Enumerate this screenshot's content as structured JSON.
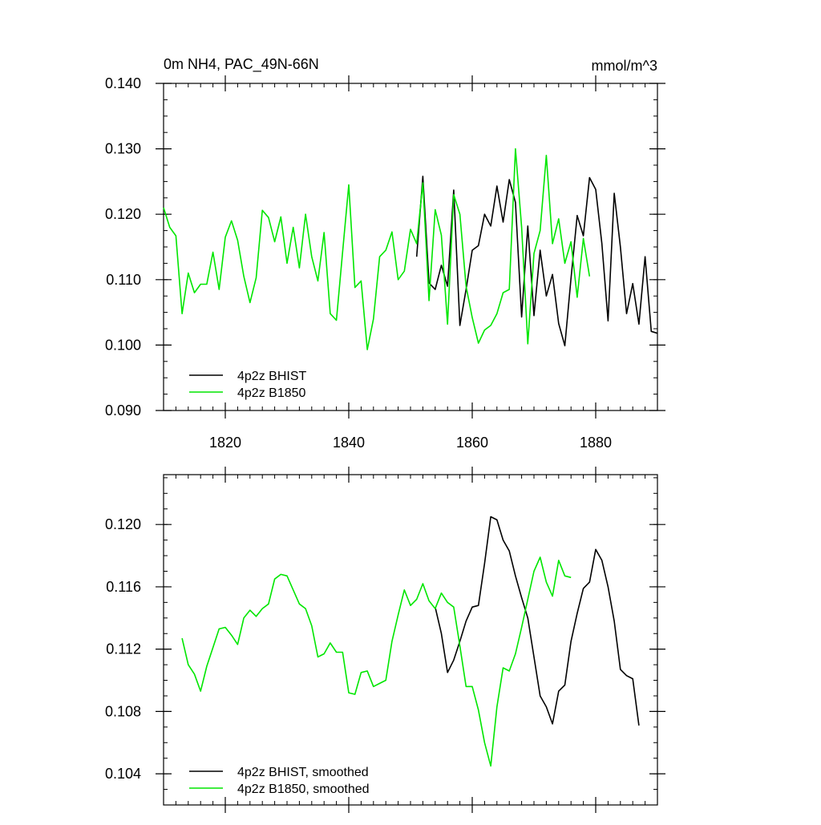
{
  "chart_data": [
    {
      "type": "line",
      "title": "0m NH4, PAC_49N-66N",
      "units": "mmol/m^3",
      "xlim": [
        1810,
        1890
      ],
      "ylim": [
        0.09,
        0.14
      ],
      "x_ticks": [
        1820,
        1840,
        1860,
        1880
      ],
      "x_tick_labels": [
        "1820",
        "1840",
        "1860",
        "1880"
      ],
      "y_ticks": [
        0.09,
        0.1,
        0.11,
        0.12,
        0.13,
        0.14
      ],
      "y_tick_labels": [
        "0.090",
        "0.100",
        "0.110",
        "0.120",
        "0.130",
        "0.140"
      ],
      "legend_position": "bottom-left",
      "series": [
        {
          "name": "4p2z BHIST",
          "color": "#000000",
          "x": [
            1851,
            1852,
            1853,
            1854,
            1855,
            1856,
            1857,
            1858,
            1859,
            1860,
            1861,
            1862,
            1863,
            1864,
            1865,
            1866,
            1867,
            1868,
            1869,
            1870,
            1871,
            1872,
            1873,
            1874,
            1875,
            1876,
            1877,
            1878,
            1879,
            1880,
            1881,
            1882,
            1883,
            1884,
            1885,
            1886,
            1887,
            1888,
            1889,
            1890
          ],
          "y": [
            0.1135,
            0.1258,
            0.1095,
            0.1085,
            0.1122,
            0.109,
            0.1237,
            0.103,
            0.1085,
            0.1145,
            0.1152,
            0.12,
            0.1182,
            0.1243,
            0.1188,
            0.1253,
            0.1218,
            0.1043,
            0.1182,
            0.1045,
            0.1145,
            0.1075,
            0.1108,
            0.1033,
            0.0999,
            0.1102,
            0.1198,
            0.1167,
            0.1256,
            0.1238,
            0.1155,
            0.1037,
            0.1232,
            0.115,
            0.1048,
            0.1094,
            0.1032,
            0.1135,
            0.1021,
            0.1018
          ]
        },
        {
          "name": "4p2z B1850",
          "color": "#00e600",
          "x": [
            1810,
            1811,
            1812,
            1813,
            1814,
            1815,
            1816,
            1817,
            1818,
            1819,
            1820,
            1821,
            1822,
            1823,
            1824,
            1825,
            1826,
            1827,
            1828,
            1829,
            1830,
            1831,
            1832,
            1833,
            1834,
            1835,
            1836,
            1837,
            1838,
            1839,
            1840,
            1841,
            1842,
            1843,
            1844,
            1845,
            1846,
            1847,
            1848,
            1849,
            1850,
            1851,
            1852,
            1853,
            1854,
            1855,
            1856,
            1857,
            1858,
            1859,
            1860,
            1861,
            1862,
            1863,
            1864,
            1865,
            1866,
            1867,
            1868,
            1869,
            1870,
            1871,
            1872,
            1873,
            1874,
            1875,
            1876,
            1877,
            1878,
            1879
          ],
          "y": [
            0.121,
            0.118,
            0.1167,
            0.1048,
            0.111,
            0.108,
            0.1093,
            0.1093,
            0.1142,
            0.1085,
            0.1165,
            0.119,
            0.116,
            0.1105,
            0.1065,
            0.1103,
            0.1206,
            0.1195,
            0.1158,
            0.1196,
            0.1125,
            0.118,
            0.1118,
            0.12,
            0.1135,
            0.1098,
            0.1172,
            0.1048,
            0.1038,
            0.1142,
            0.1245,
            0.1088,
            0.1098,
            0.0993,
            0.104,
            0.1135,
            0.1145,
            0.1173,
            0.11,
            0.1113,
            0.1177,
            0.1155,
            0.1248,
            0.1068,
            0.1207,
            0.1168,
            0.1032,
            0.123,
            0.12,
            0.109,
            0.1042,
            0.1003,
            0.1023,
            0.103,
            0.1048,
            0.108,
            0.1085,
            0.13,
            0.118,
            0.1002,
            0.114,
            0.1175,
            0.129,
            0.1155,
            0.1193,
            0.1125,
            0.1158,
            0.1073,
            0.1163,
            0.1105
          ]
        }
      ]
    },
    {
      "type": "line",
      "xlim": [
        1810,
        1890
      ],
      "ylim": [
        0.102,
        0.1232
      ],
      "x_ticks": [
        1820,
        1840,
        1860,
        1880
      ],
      "y_ticks": [
        0.104,
        0.108,
        0.112,
        0.116,
        0.12
      ],
      "y_tick_labels": [
        "0.104",
        "0.108",
        "0.112",
        "0.116",
        "0.120"
      ],
      "legend_position": "bottom-left",
      "series": [
        {
          "name": "4p2z BHIST, smoothed",
          "color": "#000000",
          "x": [
            1854,
            1855,
            1856,
            1857,
            1858,
            1859,
            1860,
            1861,
            1862,
            1863,
            1864,
            1865,
            1866,
            1867,
            1868,
            1869,
            1870,
            1871,
            1872,
            1873,
            1874,
            1875,
            1876,
            1877,
            1878,
            1879,
            1880,
            1881,
            1882,
            1883,
            1884,
            1885,
            1886,
            1887
          ],
          "y": [
            0.1147,
            0.113,
            0.1105,
            0.1113,
            0.1125,
            0.1138,
            0.1147,
            0.1148,
            0.1175,
            0.1205,
            0.1203,
            0.119,
            0.1183,
            0.1167,
            0.1153,
            0.114,
            0.1115,
            0.109,
            0.1083,
            0.1072,
            0.1093,
            0.1097,
            0.1125,
            0.1143,
            0.1159,
            0.1163,
            0.1184,
            0.1177,
            0.116,
            0.1138,
            0.1107,
            0.1103,
            0.1101,
            0.1071
          ]
        },
        {
          "name": "4p2z B1850, smoothed",
          "color": "#00e600",
          "x": [
            1813,
            1814,
            1815,
            1816,
            1817,
            1818,
            1819,
            1820,
            1821,
            1822,
            1823,
            1824,
            1825,
            1826,
            1827,
            1828,
            1829,
            1830,
            1831,
            1832,
            1833,
            1834,
            1835,
            1836,
            1837,
            1838,
            1839,
            1840,
            1841,
            1842,
            1843,
            1844,
            1845,
            1846,
            1847,
            1848,
            1849,
            1850,
            1851,
            1852,
            1853,
            1854,
            1855,
            1856,
            1857,
            1858,
            1859,
            1860,
            1861,
            1862,
            1863,
            1864,
            1865,
            1866,
            1867,
            1868,
            1869,
            1870,
            1871,
            1872,
            1873,
            1874,
            1875,
            1876
          ],
          "y": [
            0.1127,
            0.111,
            0.1104,
            0.1093,
            0.1109,
            0.1121,
            0.1133,
            0.1134,
            0.1129,
            0.1123,
            0.114,
            0.1145,
            0.1141,
            0.1146,
            0.1149,
            0.1165,
            0.1168,
            0.1167,
            0.1158,
            0.1149,
            0.1146,
            0.1135,
            0.1115,
            0.1117,
            0.1124,
            0.1118,
            0.1118,
            0.1092,
            0.1091,
            0.1105,
            0.1106,
            0.1096,
            0.1098,
            0.11,
            0.1125,
            0.1142,
            0.1158,
            0.1148,
            0.1152,
            0.1162,
            0.1151,
            0.1146,
            0.1156,
            0.115,
            0.1147,
            0.1122,
            0.1096,
            0.1096,
            0.1081,
            0.106,
            0.1045,
            0.1083,
            0.1108,
            0.1106,
            0.1117,
            0.1134,
            0.1152,
            0.117,
            0.1179,
            0.1163,
            0.1154,
            0.1177,
            0.1167,
            0.1166
          ]
        }
      ]
    }
  ]
}
